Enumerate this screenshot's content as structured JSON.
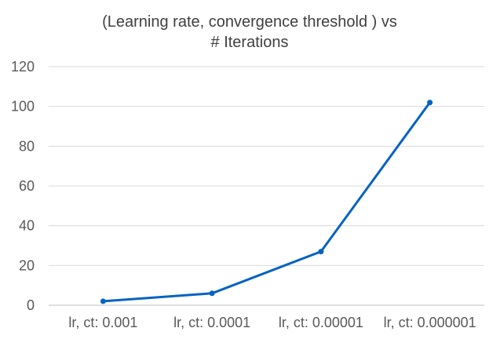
{
  "chart_data": {
    "type": "line",
    "title_lines": [
      "(Learning rate, convergence threshold ) vs",
      "# Iterations"
    ],
    "categories": [
      "lr, ct: 0.001",
      "lr, ct: 0.0001",
      "lr, ct: 0.00001",
      "lr, ct: 0.000001"
    ],
    "series": [
      {
        "values": [
          2,
          6,
          27,
          102
        ]
      }
    ],
    "ylim": [
      0,
      120
    ],
    "yticks": [
      0,
      20,
      40,
      60,
      80,
      100,
      120
    ],
    "grid": true,
    "legend": "none",
    "colors": {
      "line": "#0563c1",
      "grid": "#d9d9d9",
      "axis": "#bfbfbf"
    }
  }
}
